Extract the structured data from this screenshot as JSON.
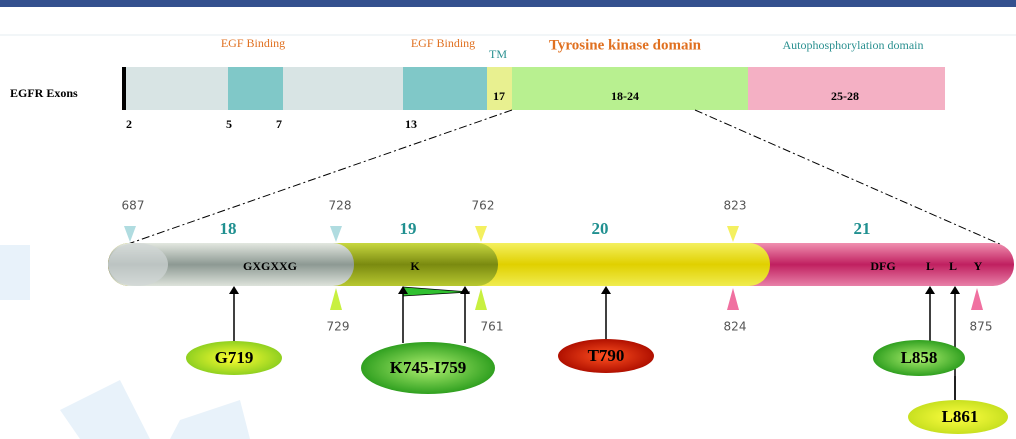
{
  "exon_map": {
    "row_label": "EGFR Exons",
    "domains": [
      "EGF Binding",
      "EGF Binding",
      "TM",
      "Tyrosine kinase domain",
      "Autophosphorylation domain"
    ],
    "segments": [
      "17",
      "18-24",
      "25-28"
    ],
    "exon_ticks": [
      "2",
      "5",
      "7",
      "13"
    ]
  },
  "detail": {
    "exons": [
      "18",
      "19",
      "20",
      "21"
    ],
    "residues_top": [
      "687",
      "728",
      "762",
      "823"
    ],
    "residues_bottom": [
      "729",
      "761",
      "824",
      "875"
    ],
    "motifs": [
      "GXGXXG",
      "K",
      "DFG",
      "L",
      "L",
      "Y"
    ],
    "mutations": [
      "G719",
      "K745-I759",
      "T790",
      "L858",
      "L861"
    ]
  }
}
